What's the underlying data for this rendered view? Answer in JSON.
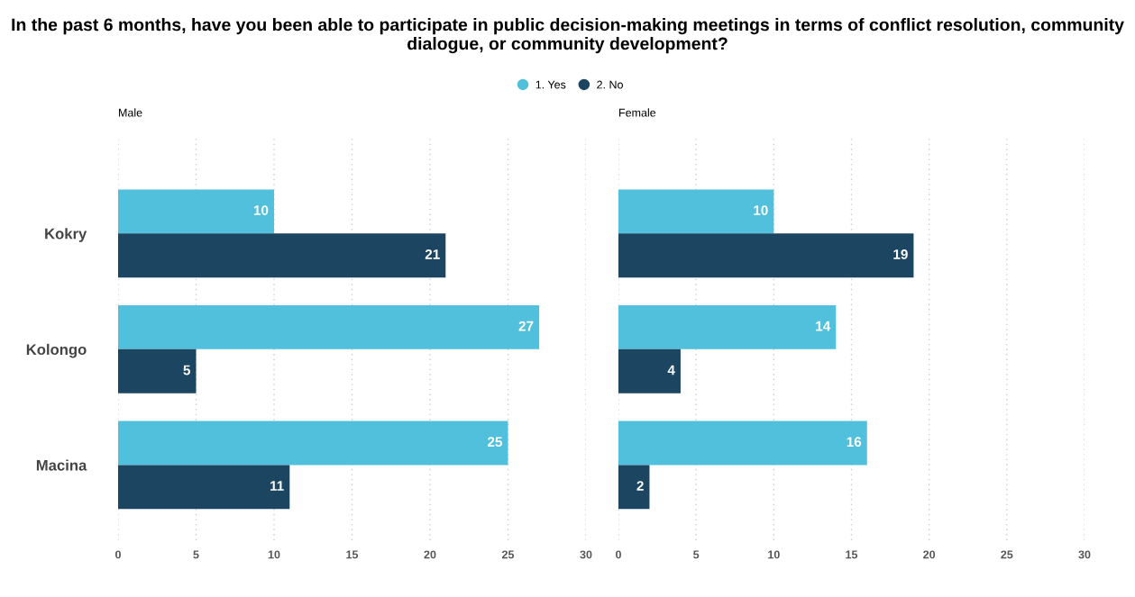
{
  "chart_data": [
    {
      "type": "bar",
      "orientation": "horizontal",
      "title": "In the past 6 months, have you been able to participate in public decision-making meetings in terms of conflict resolution, community dialogue, or community development?",
      "subtitle": "Male",
      "categories": [
        "Kokry",
        "Kolongo",
        "Macina"
      ],
      "series": [
        {
          "name": "1. Yes",
          "color": "#50c0dc",
          "values": [
            10,
            27,
            25
          ]
        },
        {
          "name": "2. No",
          "color": "#1b4560",
          "values": [
            21,
            5,
            11
          ]
        }
      ],
      "xlim": [
        0,
        30
      ],
      "xticks": [
        0,
        5,
        10,
        15,
        20,
        25,
        30
      ],
      "grid": "x",
      "legend": "top",
      "data_labels": true
    },
    {
      "type": "bar",
      "orientation": "horizontal",
      "subtitle": "Female",
      "categories": [
        null,
        null,
        null
      ],
      "series": [
        {
          "color": "#50c0dc",
          "values": [
            10,
            14,
            16
          ]
        },
        {
          "color": "#1b4560",
          "values": [
            19,
            4,
            2
          ]
        }
      ],
      "xlim": [
        0,
        30
      ],
      "xticks": [
        0,
        5,
        10,
        15,
        20,
        25,
        30
      ],
      "grid": "x",
      "tick_labels": "x",
      "data_labels": true
    }
  ]
}
